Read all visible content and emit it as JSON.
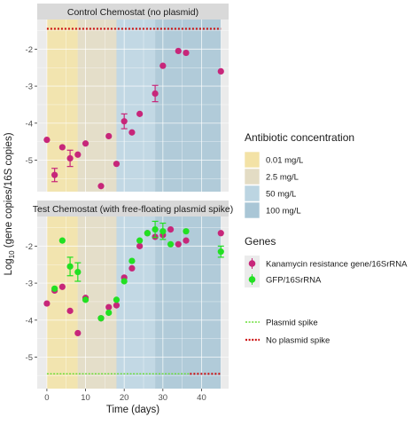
{
  "chart_data": {
    "type": "scatter",
    "xlabel": "Time (days)",
    "ylabel_prefix": "Log",
    "ylabel_sub": "10",
    "ylabel_suffix": " (gene copies/16S copies)",
    "xlim": [
      -2.5,
      47
    ],
    "ylim": [
      -5.85,
      -1.2
    ],
    "x_ticks": [
      0,
      10,
      20,
      30,
      40
    ],
    "y_ticks": [
      -5,
      -4,
      -3,
      -2
    ],
    "colors": {
      "kan": "#c7267a",
      "gfp": "#22e022",
      "plasmid_spike": "#66dd33",
      "no_plasmid_spike": "#cc1111",
      "panel_bg": "#ebebeb",
      "strip_bg": "#d9d9d9",
      "grid": "#ffffff"
    },
    "antibiotic_bands": [
      {
        "label": "0.01 mg/L",
        "x0": 0,
        "x1": 8,
        "color": "#f3e2a6"
      },
      {
        "label": "2.5 mg/L",
        "x0": 8,
        "x1": 18,
        "color": "#e3dcc4"
      },
      {
        "label": "50 mg/L",
        "x0": 18,
        "x1": 28,
        "color": "#bcd5e2"
      },
      {
        "label": "100 mg/L",
        "x0": 28,
        "x1": 45,
        "color": "#a9c6d6"
      }
    ],
    "panels": [
      {
        "title": "Control Chemostat (no plasmid)",
        "hlines": [
          {
            "series": "no_plasmid_spike",
            "y": -1.45,
            "x0": 0,
            "x1": 45
          }
        ],
        "series": [
          {
            "key": "kan",
            "points": [
              {
                "x": 0,
                "y": -4.45
              },
              {
                "x": 2,
                "y": -5.4,
                "err": 0.18
              },
              {
                "x": 4,
                "y": -4.65
              },
              {
                "x": 6,
                "y": -4.95,
                "err": 0.22
              },
              {
                "x": 8,
                "y": -4.85
              },
              {
                "x": 10,
                "y": -4.55
              },
              {
                "x": 14,
                "y": -5.7
              },
              {
                "x": 16,
                "y": -4.35
              },
              {
                "x": 18,
                "y": -5.1
              },
              {
                "x": 20,
                "y": -3.95,
                "err": 0.2
              },
              {
                "x": 22,
                "y": -4.25
              },
              {
                "x": 24,
                "y": -3.75
              },
              {
                "x": 28,
                "y": -3.2,
                "err": 0.22
              },
              {
                "x": 30,
                "y": -2.45
              },
              {
                "x": 34,
                "y": -2.05
              },
              {
                "x": 36,
                "y": -2.1
              },
              {
                "x": 45,
                "y": -2.6
              }
            ]
          }
        ]
      },
      {
        "title": "Test Chemostat (with free-floating plasmid spike)",
        "hlines": [
          {
            "series": "plasmid_spike",
            "y": -5.45,
            "x0": 0,
            "x1": 37
          },
          {
            "series": "no_plasmid_spike",
            "y": -5.45,
            "x0": 37,
            "x1": 45
          }
        ],
        "series": [
          {
            "key": "kan",
            "points": [
              {
                "x": 0,
                "y": -3.55
              },
              {
                "x": 2,
                "y": -3.2
              },
              {
                "x": 4,
                "y": -3.1
              },
              {
                "x": 6,
                "y": -3.75
              },
              {
                "x": 8,
                "y": -4.35
              },
              {
                "x": 10,
                "y": -3.4
              },
              {
                "x": 14,
                "y": -3.95
              },
              {
                "x": 16,
                "y": -3.65
              },
              {
                "x": 18,
                "y": -3.6
              },
              {
                "x": 20,
                "y": -2.85
              },
              {
                "x": 22,
                "y": -2.6
              },
              {
                "x": 24,
                "y": -2.0
              },
              {
                "x": 26,
                "y": -1.65
              },
              {
                "x": 28,
                "y": -1.75
              },
              {
                "x": 30,
                "y": -1.7
              },
              {
                "x": 32,
                "y": -1.55
              },
              {
                "x": 34,
                "y": -1.95
              },
              {
                "x": 36,
                "y": -1.85
              },
              {
                "x": 45,
                "y": -1.65
              }
            ]
          },
          {
            "key": "gfp",
            "points": [
              {
                "x": 2,
                "y": -3.15
              },
              {
                "x": 4,
                "y": -1.85
              },
              {
                "x": 6,
                "y": -2.55,
                "err": 0.25
              },
              {
                "x": 8,
                "y": -2.7,
                "err": 0.25
              },
              {
                "x": 10,
                "y": -3.45
              },
              {
                "x": 14,
                "y": -3.95
              },
              {
                "x": 16,
                "y": -3.8
              },
              {
                "x": 18,
                "y": -3.45
              },
              {
                "x": 20,
                "y": -2.95
              },
              {
                "x": 22,
                "y": -2.4
              },
              {
                "x": 24,
                "y": -1.85
              },
              {
                "x": 26,
                "y": -1.65
              },
              {
                "x": 28,
                "y": -1.55,
                "err": 0.22
              },
              {
                "x": 30,
                "y": -1.6,
                "err": 0.22
              },
              {
                "x": 32,
                "y": -1.95
              },
              {
                "x": 36,
                "y": -1.6
              },
              {
                "x": 45,
                "y": -2.15,
                "err": 0.15
              }
            ]
          }
        ]
      }
    ],
    "legends": [
      {
        "title": "Antibiotic concentration",
        "kind": "fill",
        "items": [
          {
            "label": "0.01 mg/L",
            "color": "#f3e2a6"
          },
          {
            "label": "2.5 mg/L",
            "color": "#e3dcc4"
          },
          {
            "label": "50 mg/L",
            "color": "#bcd5e2"
          },
          {
            "label": "100 mg/L",
            "color": "#a9c6d6"
          }
        ]
      },
      {
        "title": "Genes",
        "kind": "point",
        "items": [
          {
            "label": "Kanamycin resistance gene/16SrRNA",
            "color": "#c7267a"
          },
          {
            "label": "GFP/16SrRNA",
            "color": "#22e022"
          }
        ]
      },
      {
        "title": "",
        "kind": "dotline",
        "items": [
          {
            "label": "Plasmid spike",
            "color": "#66dd33"
          },
          {
            "label": "No plasmid spike",
            "color": "#cc1111"
          }
        ]
      }
    ]
  }
}
